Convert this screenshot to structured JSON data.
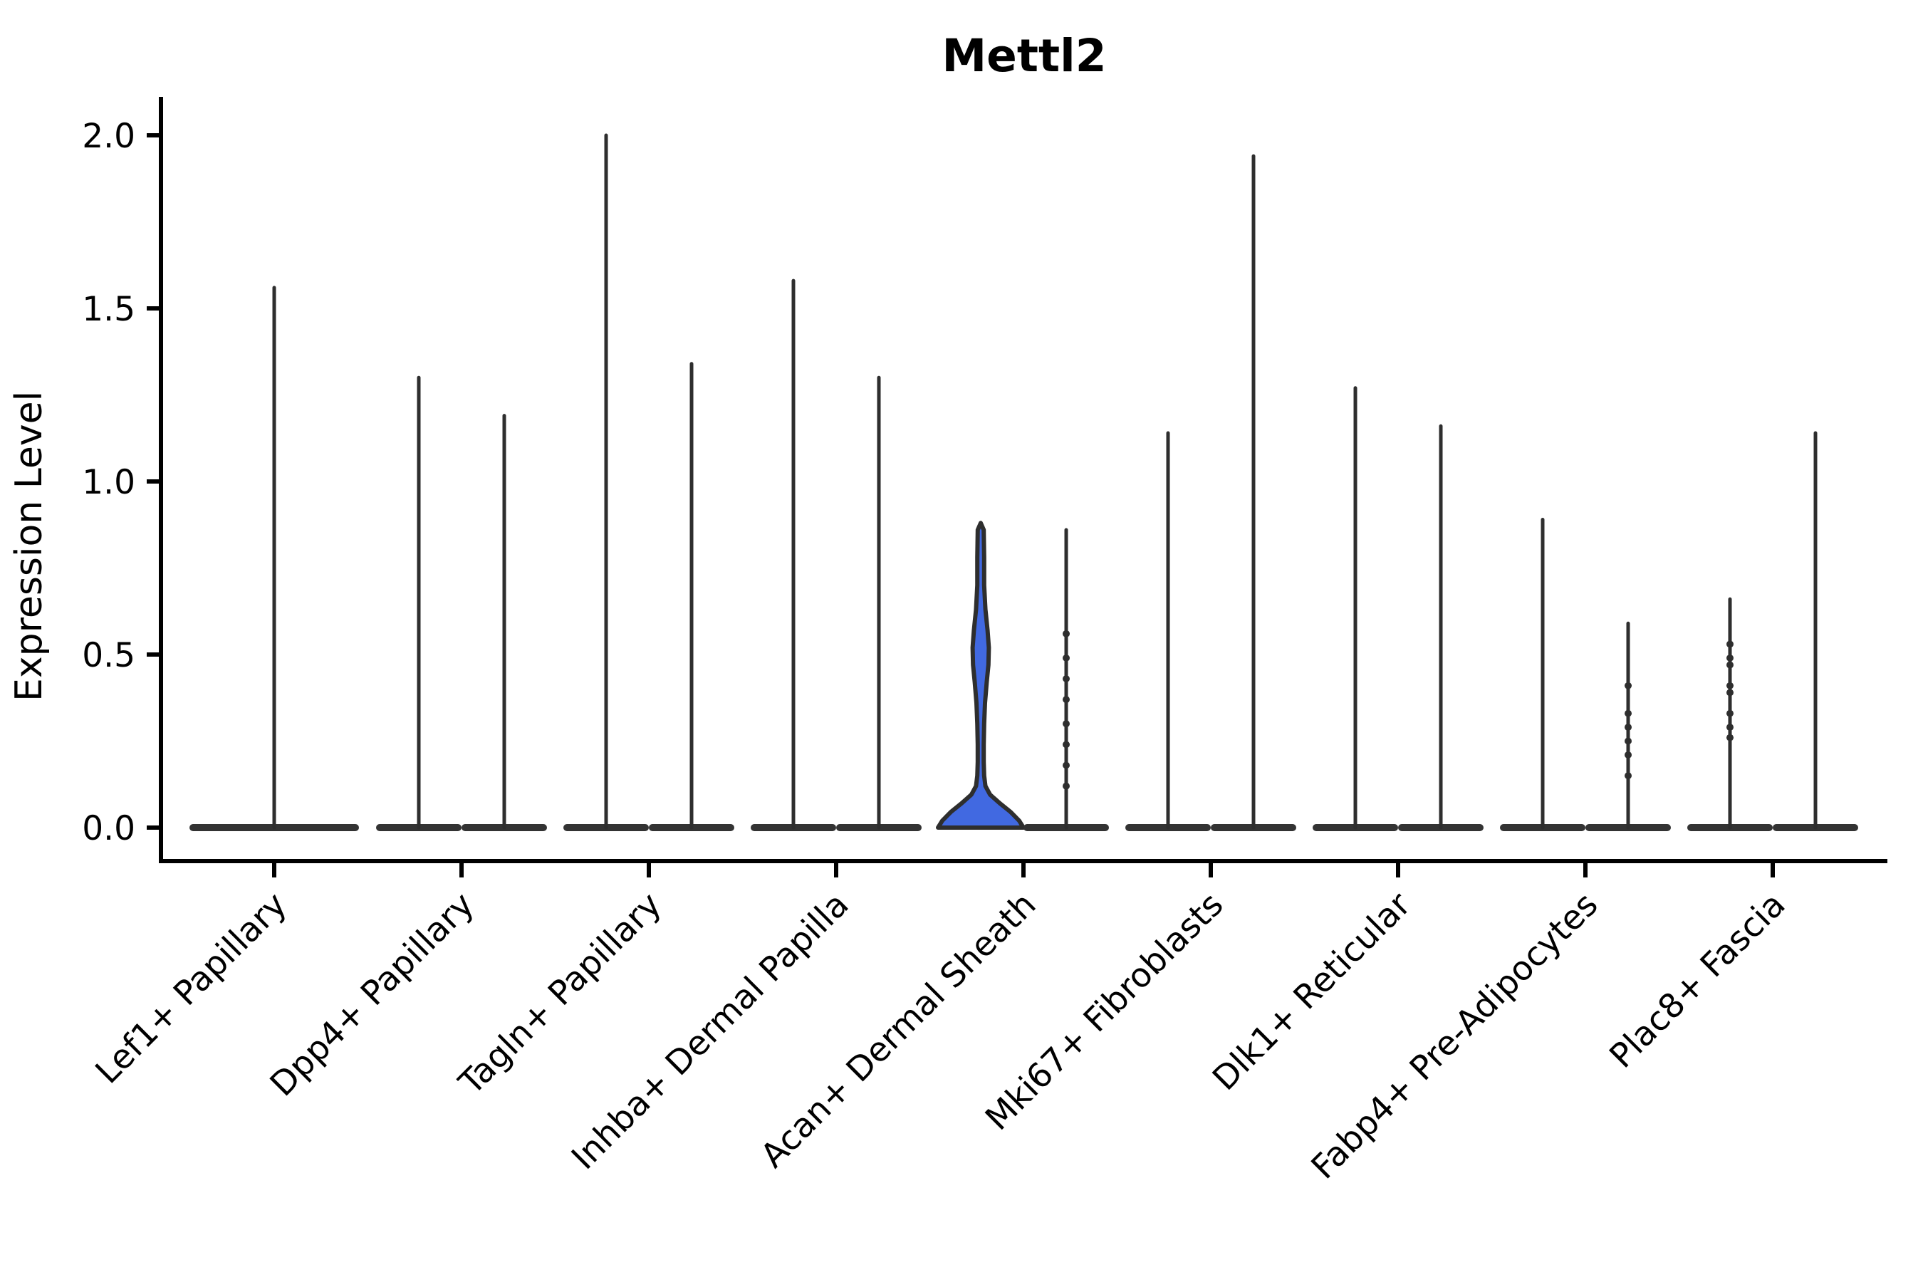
{
  "chart_data": {
    "type": "violin",
    "title": "Mettl2",
    "xlabel": "",
    "ylabel": "Expression Level",
    "ylim": [
      -0.1,
      2.1
    ],
    "grid": false,
    "legend": "none",
    "yticks": [
      0.0,
      0.5,
      1.0,
      1.5,
      2.0
    ],
    "ytick_labels": [
      "0.0",
      "0.5",
      "1.0",
      "1.5",
      "2.0"
    ],
    "categories": [
      "Lef1+ Papillary",
      "Dpp4+ Papillary",
      "Tagln+ Papillary",
      "Inhba+ Dermal Papilla",
      "Acan+ Dermal Sheath",
      "Mki67+ Fibroblasts",
      "Dlk1+ Reticular",
      "Fabp4+ Pre-Adipocytes",
      "Plac8+ Fascia"
    ],
    "description": "Violin plot of Mettl2 expression; most violins collapse to a flat base at 0 with a thin spike to the max expressed cell; the left violin of Acan+ Dermal Sheath is filled blue with a visible density body.",
    "violins": [
      {
        "category_index": 0,
        "category": "Lef1+ Papillary",
        "side": "center",
        "max": 1.56,
        "filled": false,
        "points": []
      },
      {
        "category_index": 1,
        "category": "Dpp4+ Papillary",
        "side": "left",
        "max": 1.3,
        "filled": false,
        "points": []
      },
      {
        "category_index": 1,
        "category": "Dpp4+ Papillary",
        "side": "right",
        "max": 1.19,
        "filled": false,
        "points": []
      },
      {
        "category_index": 2,
        "category": "Tagln+ Papillary",
        "side": "left",
        "max": 2.0,
        "filled": false,
        "points": []
      },
      {
        "category_index": 2,
        "category": "Tagln+ Papillary",
        "side": "right",
        "max": 1.34,
        "filled": false,
        "points": []
      },
      {
        "category_index": 3,
        "category": "Inhba+ Dermal Papilla",
        "side": "left",
        "max": 1.58,
        "filled": false,
        "points": []
      },
      {
        "category_index": 3,
        "category": "Inhba+ Dermal Papilla",
        "side": "right",
        "max": 1.3,
        "filled": false,
        "points": []
      },
      {
        "category_index": 4,
        "category": "Acan+ Dermal Sheath",
        "side": "left",
        "max": 0.88,
        "filled": true,
        "fill_color": "#4169e1",
        "profile": [
          [
            0.88,
            0.0
          ],
          [
            0.86,
            0.07
          ],
          [
            0.78,
            0.08
          ],
          [
            0.7,
            0.08
          ],
          [
            0.63,
            0.11
          ],
          [
            0.57,
            0.16
          ],
          [
            0.52,
            0.19
          ],
          [
            0.47,
            0.18
          ],
          [
            0.42,
            0.14
          ],
          [
            0.36,
            0.1
          ],
          [
            0.3,
            0.08
          ],
          [
            0.24,
            0.07
          ],
          [
            0.19,
            0.07
          ],
          [
            0.15,
            0.08
          ],
          [
            0.12,
            0.11
          ],
          [
            0.095,
            0.22
          ],
          [
            0.07,
            0.45
          ],
          [
            0.045,
            0.7
          ],
          [
            0.02,
            0.9
          ],
          [
            0.0,
            1.0
          ]
        ],
        "points": []
      },
      {
        "category_index": 4,
        "category": "Acan+ Dermal Sheath",
        "side": "right",
        "max": 0.86,
        "filled": false,
        "points": [
          0.56,
          0.49,
          0.43,
          0.37,
          0.3,
          0.24,
          0.18,
          0.12
        ]
      },
      {
        "category_index": 5,
        "category": "Mki67+ Fibroblasts",
        "side": "left",
        "max": 1.14,
        "filled": false,
        "points": []
      },
      {
        "category_index": 5,
        "category": "Mki67+ Fibroblasts",
        "side": "right",
        "max": 1.94,
        "filled": false,
        "points": []
      },
      {
        "category_index": 6,
        "category": "Dlk1+ Reticular",
        "side": "left",
        "max": 1.27,
        "filled": false,
        "points": []
      },
      {
        "category_index": 6,
        "category": "Dlk1+ Reticular",
        "side": "right",
        "max": 1.16,
        "filled": false,
        "points": []
      },
      {
        "category_index": 7,
        "category": "Fabp4+ Pre-Adipocytes",
        "side": "left",
        "max": 0.89,
        "filled": false,
        "points": []
      },
      {
        "category_index": 7,
        "category": "Fabp4+ Pre-Adipocytes",
        "side": "right",
        "max": 0.59,
        "filled": false,
        "points": [
          0.41,
          0.33,
          0.29,
          0.25,
          0.21,
          0.15
        ]
      },
      {
        "category_index": 8,
        "category": "Plac8+ Fascia",
        "side": "left",
        "max": 0.66,
        "filled": false,
        "points": [
          0.53,
          0.49,
          0.47,
          0.41,
          0.39,
          0.33,
          0.29,
          0.26
        ]
      },
      {
        "category_index": 8,
        "category": "Plac8+ Fascia",
        "side": "right",
        "max": 1.14,
        "filled": false,
        "points": []
      }
    ],
    "colors": {
      "violin_stroke": "#2e2e2e",
      "base_bar": "#333333",
      "spine": "#000000",
      "tick": "#000000",
      "text": "#000000",
      "highlight_fill": "#4169e1"
    }
  }
}
